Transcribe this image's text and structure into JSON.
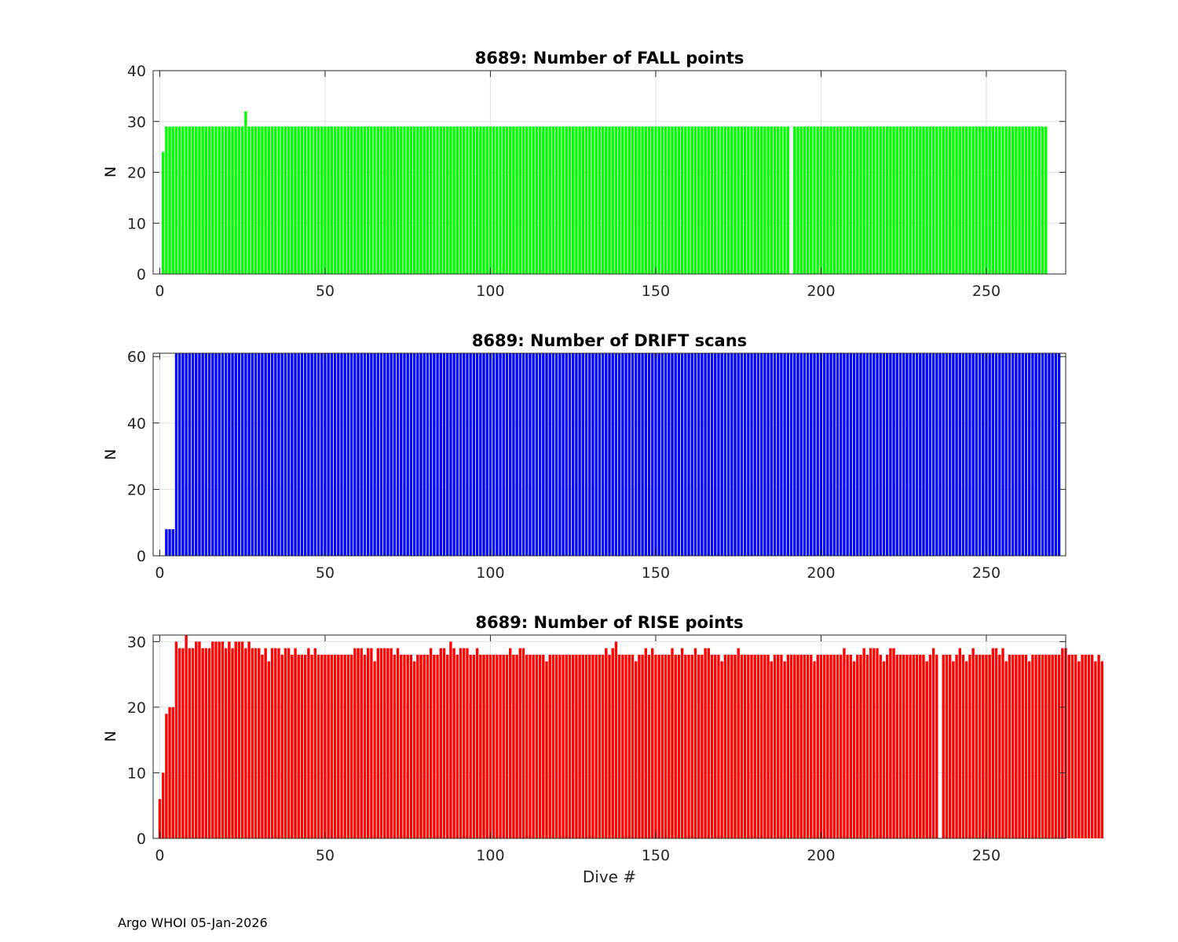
{
  "footer": "Argo WHOI 05-Jan-2026",
  "chart_data": [
    {
      "type": "bar",
      "title": "8689: Number of FALL points",
      "ylabel": "N",
      "xlabel": "",
      "color": "#00ff00",
      "xlim": [
        -2,
        274
      ],
      "ylim": [
        0,
        40
      ],
      "xticks": [
        0,
        50,
        100,
        150,
        200,
        250
      ],
      "yticks": [
        0,
        10,
        20,
        30,
        40
      ],
      "grid": true,
      "dive_start": 1,
      "values": [
        24,
        29,
        29,
        29,
        29,
        29,
        29,
        29,
        29,
        29,
        29,
        29,
        29,
        29,
        29,
        29,
        29,
        29,
        29,
        29,
        29,
        29,
        29,
        29,
        29,
        32,
        29,
        29,
        29,
        29,
        29,
        29,
        29,
        29,
        29,
        29,
        29,
        29,
        29,
        29,
        29,
        29,
        29,
        29,
        29,
        29,
        29,
        29,
        29,
        29,
        29,
        29,
        29,
        29,
        29,
        29,
        29,
        29,
        29,
        29,
        29,
        29,
        29,
        29,
        29,
        29,
        29,
        29,
        29,
        29,
        29,
        29,
        29,
        29,
        29,
        29,
        29,
        29,
        29,
        29,
        29,
        29,
        29,
        29,
        29,
        29,
        29,
        29,
        29,
        29,
        29,
        29,
        29,
        29,
        29,
        29,
        29,
        29,
        29,
        29,
        29,
        29,
        29,
        29,
        29,
        29,
        29,
        29,
        29,
        29,
        29,
        29,
        29,
        29,
        29,
        29,
        29,
        29,
        29,
        29,
        29,
        29,
        29,
        29,
        29,
        29,
        29,
        29,
        29,
        29,
        29,
        29,
        29,
        29,
        29,
        29,
        29,
        29,
        29,
        29,
        29,
        29,
        29,
        29,
        29,
        29,
        29,
        29,
        29,
        29,
        29,
        29,
        29,
        29,
        29,
        29,
        29,
        29,
        29,
        29,
        29,
        29,
        29,
        29,
        29,
        29,
        29,
        29,
        29,
        29,
        29,
        29,
        29,
        29,
        29,
        29,
        29,
        29,
        29,
        29,
        29,
        29,
        29,
        29,
        29,
        29,
        29,
        29,
        29,
        29,
        0,
        29,
        29,
        29,
        29,
        29,
        29,
        29,
        29,
        29,
        29,
        29,
        29,
        29,
        29,
        29,
        29,
        29,
        29,
        29,
        29,
        29,
        29,
        29,
        29,
        29,
        29,
        29,
        29,
        29,
        29,
        29,
        29,
        29,
        29,
        29,
        29,
        29,
        29,
        29,
        29,
        29,
        29,
        29,
        29,
        29,
        29,
        29,
        29,
        29,
        29,
        29,
        29,
        29,
        29,
        29,
        29,
        29,
        29,
        29,
        29,
        29,
        29,
        29,
        29,
        29,
        29,
        29,
        29,
        29,
        29,
        29,
        29,
        29,
        29,
        29,
        29,
        29
      ]
    },
    {
      "type": "bar",
      "title": "8689: Number of DRIFT scans",
      "ylabel": "N",
      "xlabel": "",
      "color": "#0000ff",
      "xlim": [
        -2,
        274
      ],
      "ylim": [
        0,
        61
      ],
      "xticks": [
        0,
        50,
        100,
        150,
        200,
        250
      ],
      "yticks": [
        0,
        20,
        40,
        60
      ],
      "grid": true,
      "dive_start": 1,
      "values": [
        0,
        8,
        8,
        8,
        61,
        61,
        61,
        61,
        61,
        61,
        61,
        61,
        61,
        61,
        61,
        61,
        61,
        61,
        61,
        61,
        61,
        61,
        61,
        61,
        61,
        61,
        61,
        61,
        61,
        61,
        61,
        61,
        61,
        61,
        61,
        61,
        61,
        61,
        61,
        61,
        61,
        61,
        61,
        61,
        61,
        61,
        61,
        61,
        61,
        61,
        61,
        61,
        61,
        61,
        61,
        61,
        61,
        61,
        61,
        61,
        61,
        61,
        61,
        61,
        61,
        61,
        61,
        61,
        61,
        61,
        61,
        61,
        61,
        61,
        61,
        61,
        61,
        61,
        61,
        61,
        61,
        61,
        61,
        61,
        61,
        61,
        61,
        61,
        61,
        61,
        61,
        61,
        61,
        61,
        61,
        61,
        61,
        61,
        61,
        61,
        61,
        61,
        61,
        61,
        61,
        61,
        61,
        61,
        61,
        61,
        61,
        61,
        61,
        61,
        61,
        61,
        61,
        61,
        61,
        61,
        61,
        61,
        61,
        61,
        61,
        61,
        61,
        61,
        61,
        61,
        61,
        61,
        61,
        61,
        61,
        61,
        61,
        61,
        61,
        61,
        61,
        61,
        61,
        61,
        61,
        61,
        61,
        61,
        61,
        61,
        61,
        61,
        61,
        61,
        61,
        61,
        61,
        61,
        61,
        61,
        61,
        61,
        61,
        61,
        61,
        61,
        61,
        61,
        61,
        61,
        61,
        61,
        61,
        61,
        61,
        61,
        61,
        61,
        61,
        61,
        61,
        61,
        61,
        61,
        61,
        61,
        61,
        61,
        61,
        61,
        61,
        61,
        61,
        61,
        61,
        61,
        61,
        61,
        61,
        61,
        61,
        61,
        61,
        61,
        61,
        61,
        61,
        61,
        61,
        61,
        61,
        61,
        61,
        61,
        61,
        61,
        61,
        61,
        61,
        61,
        61,
        61,
        61,
        61,
        61,
        61,
        61,
        61,
        61,
        61,
        61,
        61,
        61,
        61,
        61,
        61,
        61,
        61,
        61,
        61,
        61,
        61,
        61,
        61,
        61,
        61,
        61,
        61,
        61,
        61,
        61,
        61,
        61,
        61,
        61,
        61,
        61,
        61,
        61,
        61,
        61,
        61,
        61,
        61,
        61,
        61,
        61,
        61,
        61,
        61,
        61,
        61
      ]
    },
    {
      "type": "bar",
      "title": "8689: Number of RISE points",
      "ylabel": "N",
      "xlabel": "Dive #",
      "color": "#ff0000",
      "xlim": [
        -2,
        274
      ],
      "ylim": [
        0,
        31
      ],
      "xticks": [
        0,
        50,
        100,
        150,
        200,
        250
      ],
      "yticks": [
        0,
        10,
        20,
        30
      ],
      "grid": true,
      "dive_start": 0,
      "values": [
        6,
        10,
        19,
        20,
        20,
        30,
        29,
        29,
        31,
        29,
        29,
        30,
        30,
        29,
        29,
        29,
        30,
        30,
        30,
        30,
        29,
        30,
        29,
        30,
        30,
        30,
        29,
        30,
        29,
        29,
        29,
        28,
        29,
        27,
        29,
        29,
        29,
        28,
        29,
        29,
        28,
        29,
        28,
        28,
        28,
        29,
        28,
        29,
        28,
        28,
        28,
        28,
        28,
        28,
        28,
        28,
        28,
        28,
        28,
        29,
        29,
        29,
        28,
        29,
        29,
        27,
        29,
        29,
        29,
        29,
        29,
        28,
        29,
        28,
        28,
        28,
        28,
        27,
        28,
        28,
        28,
        28,
        29,
        28,
        28,
        29,
        29,
        28,
        30,
        29,
        28,
        29,
        29,
        29,
        28,
        28,
        29,
        28,
        28,
        28,
        28,
        28,
        28,
        28,
        28,
        28,
        29,
        28,
        28,
        29,
        29,
        28,
        28,
        28,
        28,
        28,
        28,
        27,
        28,
        28,
        28,
        28,
        28,
        28,
        28,
        28,
        28,
        28,
        28,
        28,
        28,
        28,
        28,
        28,
        28,
        29,
        28,
        29,
        30,
        28,
        28,
        28,
        28,
        28,
        27,
        28,
        28,
        29,
        28,
        29,
        28,
        28,
        28,
        28,
        28,
        29,
        28,
        28,
        29,
        28,
        28,
        28,
        29,
        28,
        28,
        29,
        29,
        28,
        28,
        28,
        27,
        28,
        28,
        28,
        28,
        29,
        28,
        28,
        28,
        28,
        28,
        28,
        28,
        28,
        28,
        27,
        28,
        28,
        28,
        27,
        28,
        28,
        28,
        28,
        28,
        28,
        28,
        28,
        27,
        28,
        28,
        28,
        28,
        28,
        28,
        28,
        28,
        29,
        28,
        28,
        27,
        28,
        28,
        29,
        28,
        29,
        29,
        29,
        28,
        27,
        28,
        29,
        29,
        28,
        28,
        28,
        28,
        28,
        28,
        28,
        28,
        28,
        27,
        28,
        29,
        28,
        0,
        28,
        28,
        28,
        27,
        28,
        29,
        28,
        27,
        28,
        29,
        28,
        28,
        28,
        28,
        28,
        29,
        29,
        28,
        29,
        27,
        28,
        28,
        28,
        28,
        28,
        28,
        27,
        28,
        28,
        28,
        28,
        28,
        28,
        28,
        28,
        28,
        29,
        29,
        28,
        28,
        28,
        27,
        28,
        28,
        28,
        28,
        27,
        28,
        27
      ]
    }
  ]
}
